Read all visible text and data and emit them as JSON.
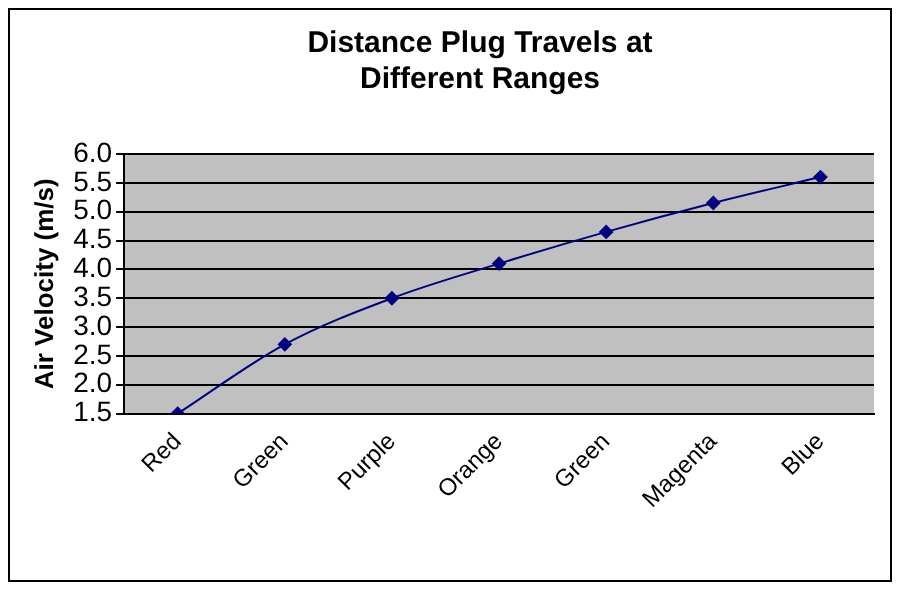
{
  "chart_data": {
    "type": "line",
    "title": "Distance Plug Travels at Different Ranges",
    "ylabel": "Air Velocity (m/s)",
    "categories": [
      "Red",
      "Green",
      "Purple",
      "Orange",
      "Green",
      "Magenta",
      "Blue"
    ],
    "series": [
      {
        "color": "#000080",
        "values": [
          1.5,
          2.7,
          3.5,
          4.1,
          4.65,
          5.15,
          5.6
        ]
      }
    ],
    "ylim": [
      1.5,
      6.0
    ],
    "yticks": [
      {
        "value": 1.5,
        "label": "1.5"
      },
      {
        "value": 2,
        "label": "2.0"
      },
      {
        "value": 2.5,
        "label": "2.5"
      },
      {
        "value": 3,
        "label": "3.0"
      },
      {
        "value": 3.5,
        "label": "3.5"
      },
      {
        "value": 4,
        "label": "4.0"
      },
      {
        "value": 4.5,
        "label": "4.5"
      },
      {
        "value": 5,
        "label": "5.0"
      },
      {
        "value": 5.5,
        "label": "5.5"
      },
      {
        "value": 6,
        "label": "6.0"
      }
    ],
    "grid": "y",
    "legend": false,
    "marker": "diamond",
    "line_style": "solid"
  }
}
